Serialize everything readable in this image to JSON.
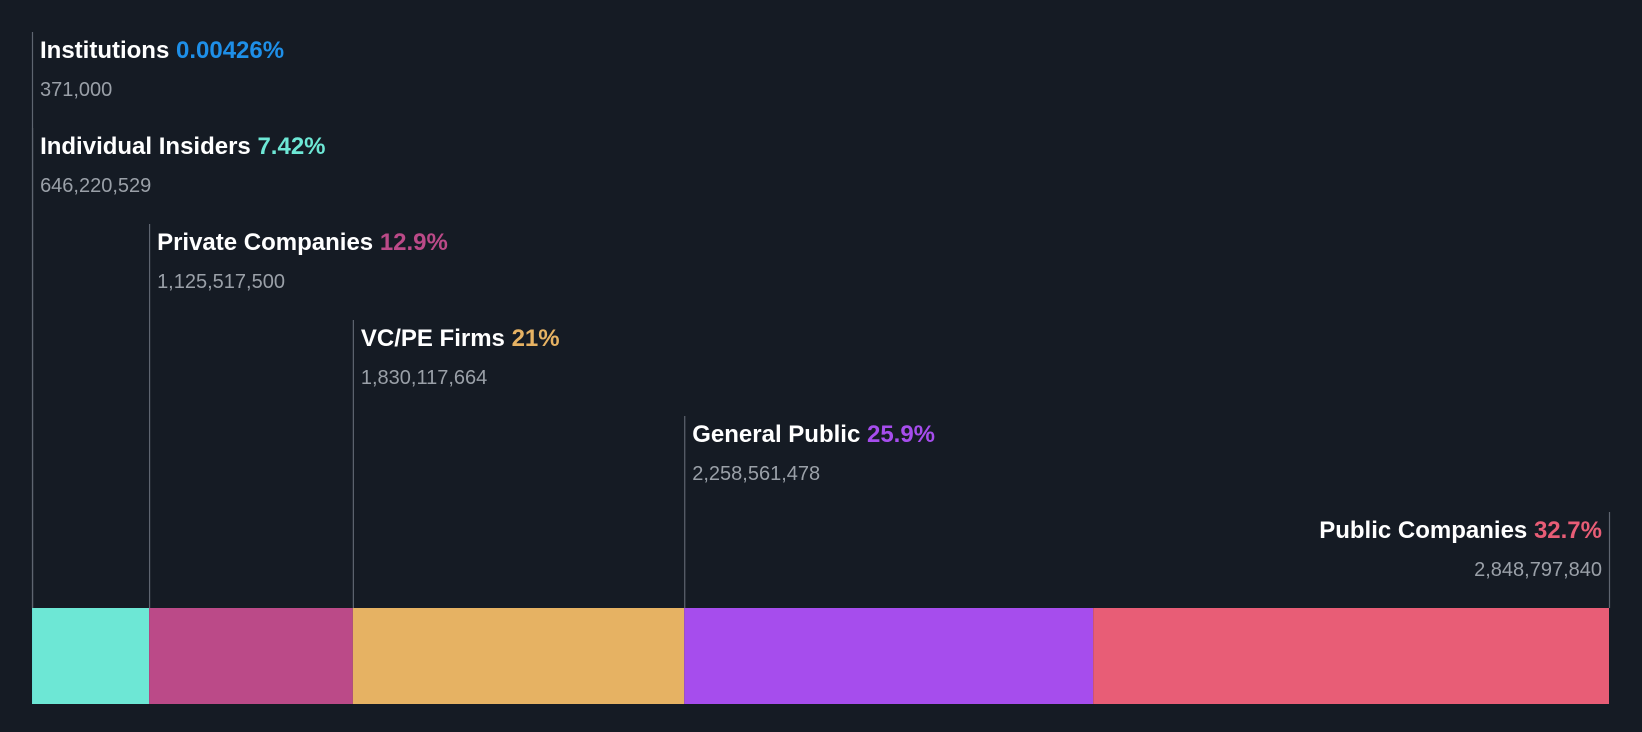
{
  "chart_data": {
    "type": "bar",
    "orientation": "horizontal-stacked",
    "categories": [
      "Institutions",
      "Individual Insiders",
      "Private Companies",
      "VC/PE Firms",
      "General Public",
      "Public Companies"
    ],
    "percent_labels": [
      "0.00426%",
      "7.42%",
      "12.9%",
      "21%",
      "25.9%",
      "32.7%"
    ],
    "percent_values": [
      0.00426,
      7.42,
      12.9,
      21,
      25.9,
      32.7
    ],
    "shares_labels": [
      "371,000",
      "646,220,529",
      "1,125,517,500",
      "1,830,117,664",
      "2,258,561,478",
      "2,848,797,840"
    ],
    "shares": [
      371000,
      646220529,
      1125517500,
      1830117664,
      2258561478,
      2848797840
    ],
    "colors": [
      "#1e8fe8",
      "#6de7d5",
      "#bb4a88",
      "#e6b263",
      "#a64ded",
      "#e85d76"
    ],
    "background": "#151b24",
    "last_label_align": "right"
  }
}
